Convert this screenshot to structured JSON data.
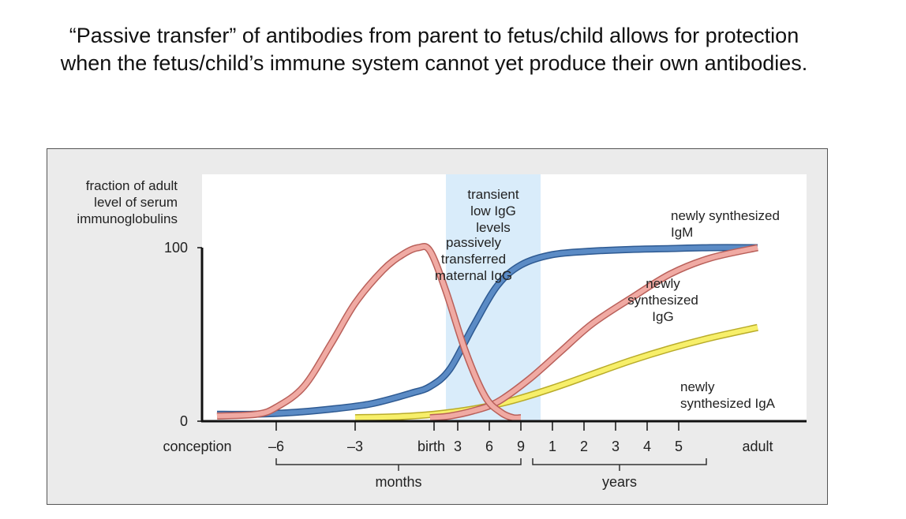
{
  "page": {
    "title_line1": "“Passive transfer” of antibodies from parent to fetus/child allows for protection",
    "title_line2": "when the fetus/child’s immune system cannot yet produce their own antibodies."
  },
  "colors": {
    "blue": "#5b8bc5",
    "blue_edge": "#2e5a92",
    "pink": "#f0aaa3",
    "pink_edge": "#b9605a",
    "yellow": "#f7ef6a",
    "yellow_edge": "#b9ac2a",
    "shade": "#d9ecfa",
    "axis": "#111111"
  },
  "chart_data": {
    "type": "line",
    "title": "",
    "ylabel_lines": [
      "fraction of adult",
      "level of serum",
      "immunoglobulins"
    ],
    "ylim": [
      0,
      100
    ],
    "y_ticks": [
      {
        "value": 0,
        "label": "0"
      },
      {
        "value": 100,
        "label": "100"
      }
    ],
    "x_unit": "timeline position (0 = conception, 3 = birth, 10 = adult)",
    "xlim": [
      -0.4,
      10.3
    ],
    "x_ticks": [
      {
        "x": 0.0,
        "label": "conception"
      },
      {
        "x": 1.0,
        "label": "–6"
      },
      {
        "x": 2.0,
        "label": "–3"
      },
      {
        "x": 3.0,
        "label": "birth"
      },
      {
        "x": 3.3,
        "label": "3"
      },
      {
        "x": 3.7,
        "label": "6"
      },
      {
        "x": 4.1,
        "label": "9"
      },
      {
        "x": 4.5,
        "label": "1"
      },
      {
        "x": 4.9,
        "label": "2"
      },
      {
        "x": 5.3,
        "label": "3"
      },
      {
        "x": 5.7,
        "label": "4"
      },
      {
        "x": 6.1,
        "label": "5"
      },
      {
        "x": 7.1,
        "label": "adult"
      }
    ],
    "groups": [
      {
        "label": "months",
        "from": 1.0,
        "to": 4.1
      },
      {
        "label": "years",
        "from": 4.25,
        "to": 6.45
      }
    ],
    "shaded_region": {
      "from": 3.15,
      "to": 4.35,
      "label_lines": [
        "transient",
        "low IgG",
        "levels"
      ]
    },
    "series": [
      {
        "name": "maternal IgG",
        "label_lines": [
          "passively",
          "transferred",
          "maternal IgG"
        ],
        "color": "pink",
        "x": [
          0.25,
          0.75,
          1.0,
          1.35,
          1.7,
          2.0,
          2.35,
          2.6,
          2.8,
          2.95,
          3.15,
          3.4,
          3.65,
          3.85,
          4.0,
          4.1
        ],
        "y": [
          3,
          4,
          8,
          20,
          45,
          68,
          87,
          96,
          100,
          98,
          75,
          40,
          14,
          5,
          2,
          2
        ]
      },
      {
        "name": "newly synthesized IgM",
        "label_lines": [
          "newly synthesized",
          "IgM"
        ],
        "color": "blue",
        "x": [
          0.25,
          0.7,
          1.2,
          1.7,
          2.2,
          2.7,
          2.95,
          3.2,
          3.5,
          3.8,
          4.1,
          4.5,
          5.0,
          5.5,
          6.0,
          6.5,
          7.1
        ],
        "y": [
          4,
          4,
          5,
          7,
          10,
          16,
          20,
          30,
          55,
          78,
          90,
          96,
          98,
          99,
          99.5,
          100,
          100
        ]
      },
      {
        "name": "newly synthesized IgG",
        "label_lines": [
          "newly",
          "synthesized",
          "IgG"
        ],
        "color": "pink",
        "x": [
          2.95,
          3.2,
          3.5,
          3.8,
          4.2,
          4.6,
          5.0,
          5.5,
          6.0,
          6.5,
          7.1
        ],
        "y": [
          2,
          3,
          6,
          11,
          24,
          40,
          56,
          71,
          85,
          94,
          100
        ]
      },
      {
        "name": "newly synthesized IgA",
        "label_lines": [
          "newly",
          "synthesized IgA"
        ],
        "color": "yellow",
        "x": [
          2.0,
          2.5,
          3.0,
          3.5,
          4.0,
          4.5,
          5.0,
          5.5,
          6.0,
          6.5,
          7.1
        ],
        "y": [
          2,
          2.5,
          4,
          7,
          12,
          19,
          27,
          35,
          42,
          48,
          54
        ]
      }
    ]
  }
}
